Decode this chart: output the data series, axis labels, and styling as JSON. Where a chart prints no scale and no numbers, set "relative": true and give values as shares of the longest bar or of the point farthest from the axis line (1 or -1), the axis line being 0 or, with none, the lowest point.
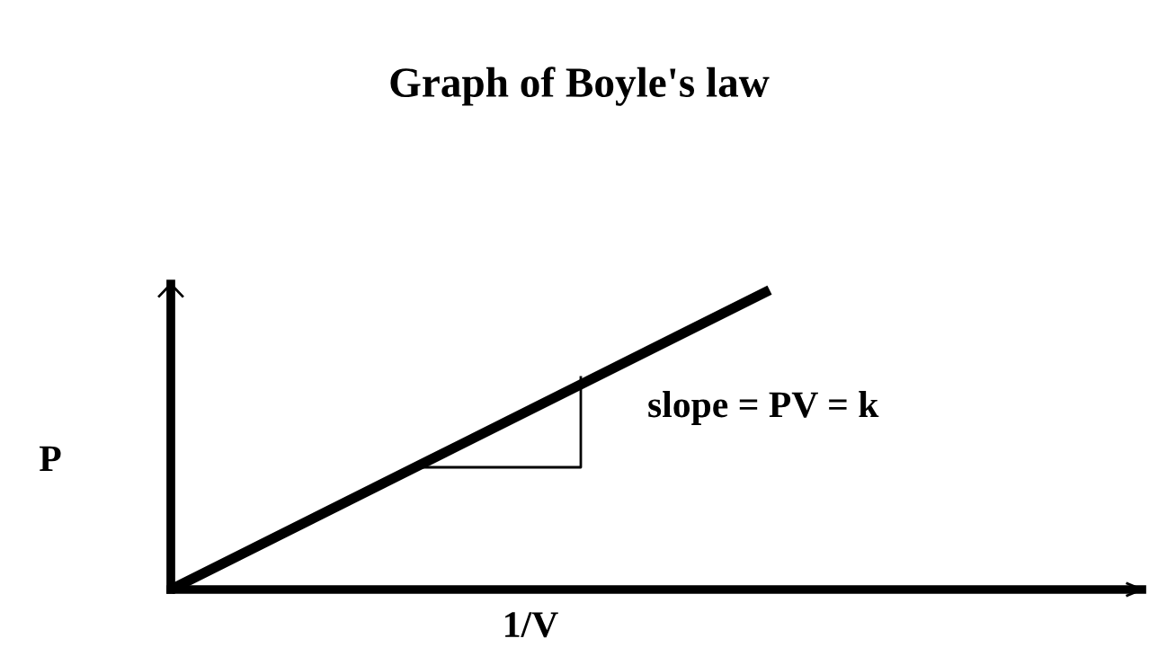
{
  "chart_data": {
    "type": "line",
    "title": "Graph of Boyle's law",
    "xlabel": "1/V",
    "ylabel": "P",
    "annotations": [
      "slope = PV = k"
    ],
    "categories": [
      null,
      null
    ],
    "values": [
      0,
      1
    ],
    "color": "#000000",
    "relative": true
  }
}
